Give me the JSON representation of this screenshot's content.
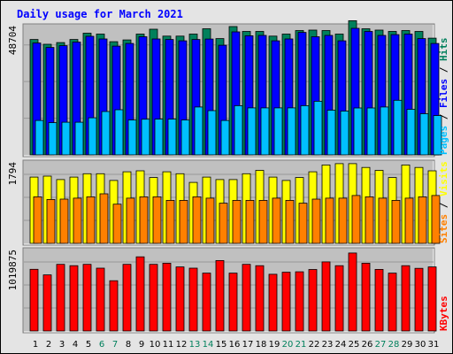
{
  "chart_data": {
    "type": "bar",
    "title": "Daily usage for March 2021",
    "colors": {
      "hits": "#00805c",
      "files": "#0000ff",
      "pages": "#00c0ff",
      "visits": "#ffff00",
      "sites": "#ff8000",
      "kbytes": "#ff0000",
      "title": "#0000ff",
      "weekend": "#00805c",
      "weekday": "#000000",
      "panel": "#c0c0c0"
    },
    "categories": [
      "1",
      "2",
      "3",
      "4",
      "5",
      "6",
      "7",
      "8",
      "9",
      "10",
      "11",
      "12",
      "13",
      "14",
      "15",
      "16",
      "17",
      "18",
      "19",
      "20",
      "21",
      "22",
      "23",
      "24",
      "25",
      "26",
      "27",
      "28",
      "29",
      "30",
      "31"
    ],
    "weekend_days": [
      "6",
      "7",
      "13",
      "14",
      "20",
      "21",
      "27",
      "28"
    ],
    "panels": [
      {
        "name": "requests",
        "ymax_label": "48704",
        "ymax": 48704,
        "side_labels": [
          {
            "text": "Pages",
            "color": "#00c0ff"
          },
          {
            "text": " / ",
            "color": "#000000"
          },
          {
            "text": "Files",
            "color": "#0000ff"
          },
          {
            "text": " / ",
            "color": "#000000"
          },
          {
            "text": "Hits",
            "color": "#00805c"
          }
        ],
        "series": [
          {
            "name": "Hits",
            "color": "#00805c",
            "values": [
              43810,
              42000,
              42630,
              43810,
              46180,
              45840,
              42970,
              43640,
              45840,
              47710,
              45070,
              45070,
              45840,
              47870,
              44140,
              48710,
              46860,
              46860,
              45070,
              45840,
              47200,
              47370,
              47200,
              45840,
              50920,
              47870,
              47370,
              46860,
              47200,
              46860,
              44310
            ]
          },
          {
            "name": "Files",
            "color": "#0000ff",
            "values": [
              42460,
              40780,
              41440,
              42800,
              45010,
              44010,
              41270,
              42290,
              44840,
              44010,
              43790,
              43300,
              43790,
              43960,
              41620,
              46690,
              45210,
              45350,
              43300,
              44010,
              46500,
              44840,
              45350,
              43300,
              48040,
              46850,
              45350,
              45640,
              45840,
              44140,
              42300
            ]
          },
          {
            "name": "Pages",
            "color": "#00c0ff",
            "values": [
              13050,
              12210,
              12380,
              12380,
              14080,
              16460,
              17140,
              13220,
              13550,
              13560,
              13560,
              13220,
              18160,
              16800,
              13060,
              18660,
              17830,
              17830,
              17830,
              17830,
              18670,
              20370,
              16970,
              16630,
              17810,
              17810,
              18160,
              20710,
              17310,
              15610,
              14920
            ]
          }
        ]
      },
      {
        "name": "visitors",
        "ymax_label": "1794",
        "ymax": 1794,
        "side_labels": [
          {
            "text": "Sites",
            "color": "#ff8000"
          },
          {
            "text": " / ",
            "color": "#000000"
          },
          {
            "text": "Visits",
            "color": "#ffff00"
          }
        ],
        "series": [
          {
            "name": "Visits",
            "color": "#ffff00",
            "values": [
              1476,
              1498,
              1422,
              1476,
              1551,
              1551,
              1401,
              1595,
              1617,
              1466,
              1595,
              1551,
              1358,
              1476,
              1422,
              1422,
              1552,
              1627,
              1476,
              1401,
              1466,
              1595,
              1746,
              1776,
              1776,
              1692,
              1627,
              1466,
              1746,
              1692,
              1617
            ]
          },
          {
            "name": "Sites",
            "color": "#ff8000",
            "values": [
              1037,
              977,
              986,
              1007,
              1037,
              1104,
              874,
              1007,
              1037,
              1037,
              959,
              959,
              1037,
              1007,
              896,
              959,
              959,
              959,
              1007,
              959,
              896,
              986,
              1007,
              1007,
              1067,
              1037,
              1007,
              959,
              1007,
              1037,
              1067
            ]
          }
        ]
      },
      {
        "name": "traffic",
        "ymax_label": "1019875",
        "ymax": 1019875,
        "side_labels": [
          {
            "text": "KBytes",
            "color": "#ff0000"
          }
        ],
        "series": [
          {
            "name": "KBytes",
            "color": "#ff0000",
            "values": [
              781000,
              710000,
              844000,
              827000,
              844000,
              796000,
              637000,
              844000,
              939000,
              844000,
              859000,
              811000,
              796000,
              733000,
              892000,
              733000,
              844000,
              827000,
              718000,
              744000,
              750000,
              779000,
              875000,
              827000,
              987000,
              859000,
              780000,
              733000,
              827000,
              793000,
              811000
            ]
          }
        ]
      }
    ]
  }
}
